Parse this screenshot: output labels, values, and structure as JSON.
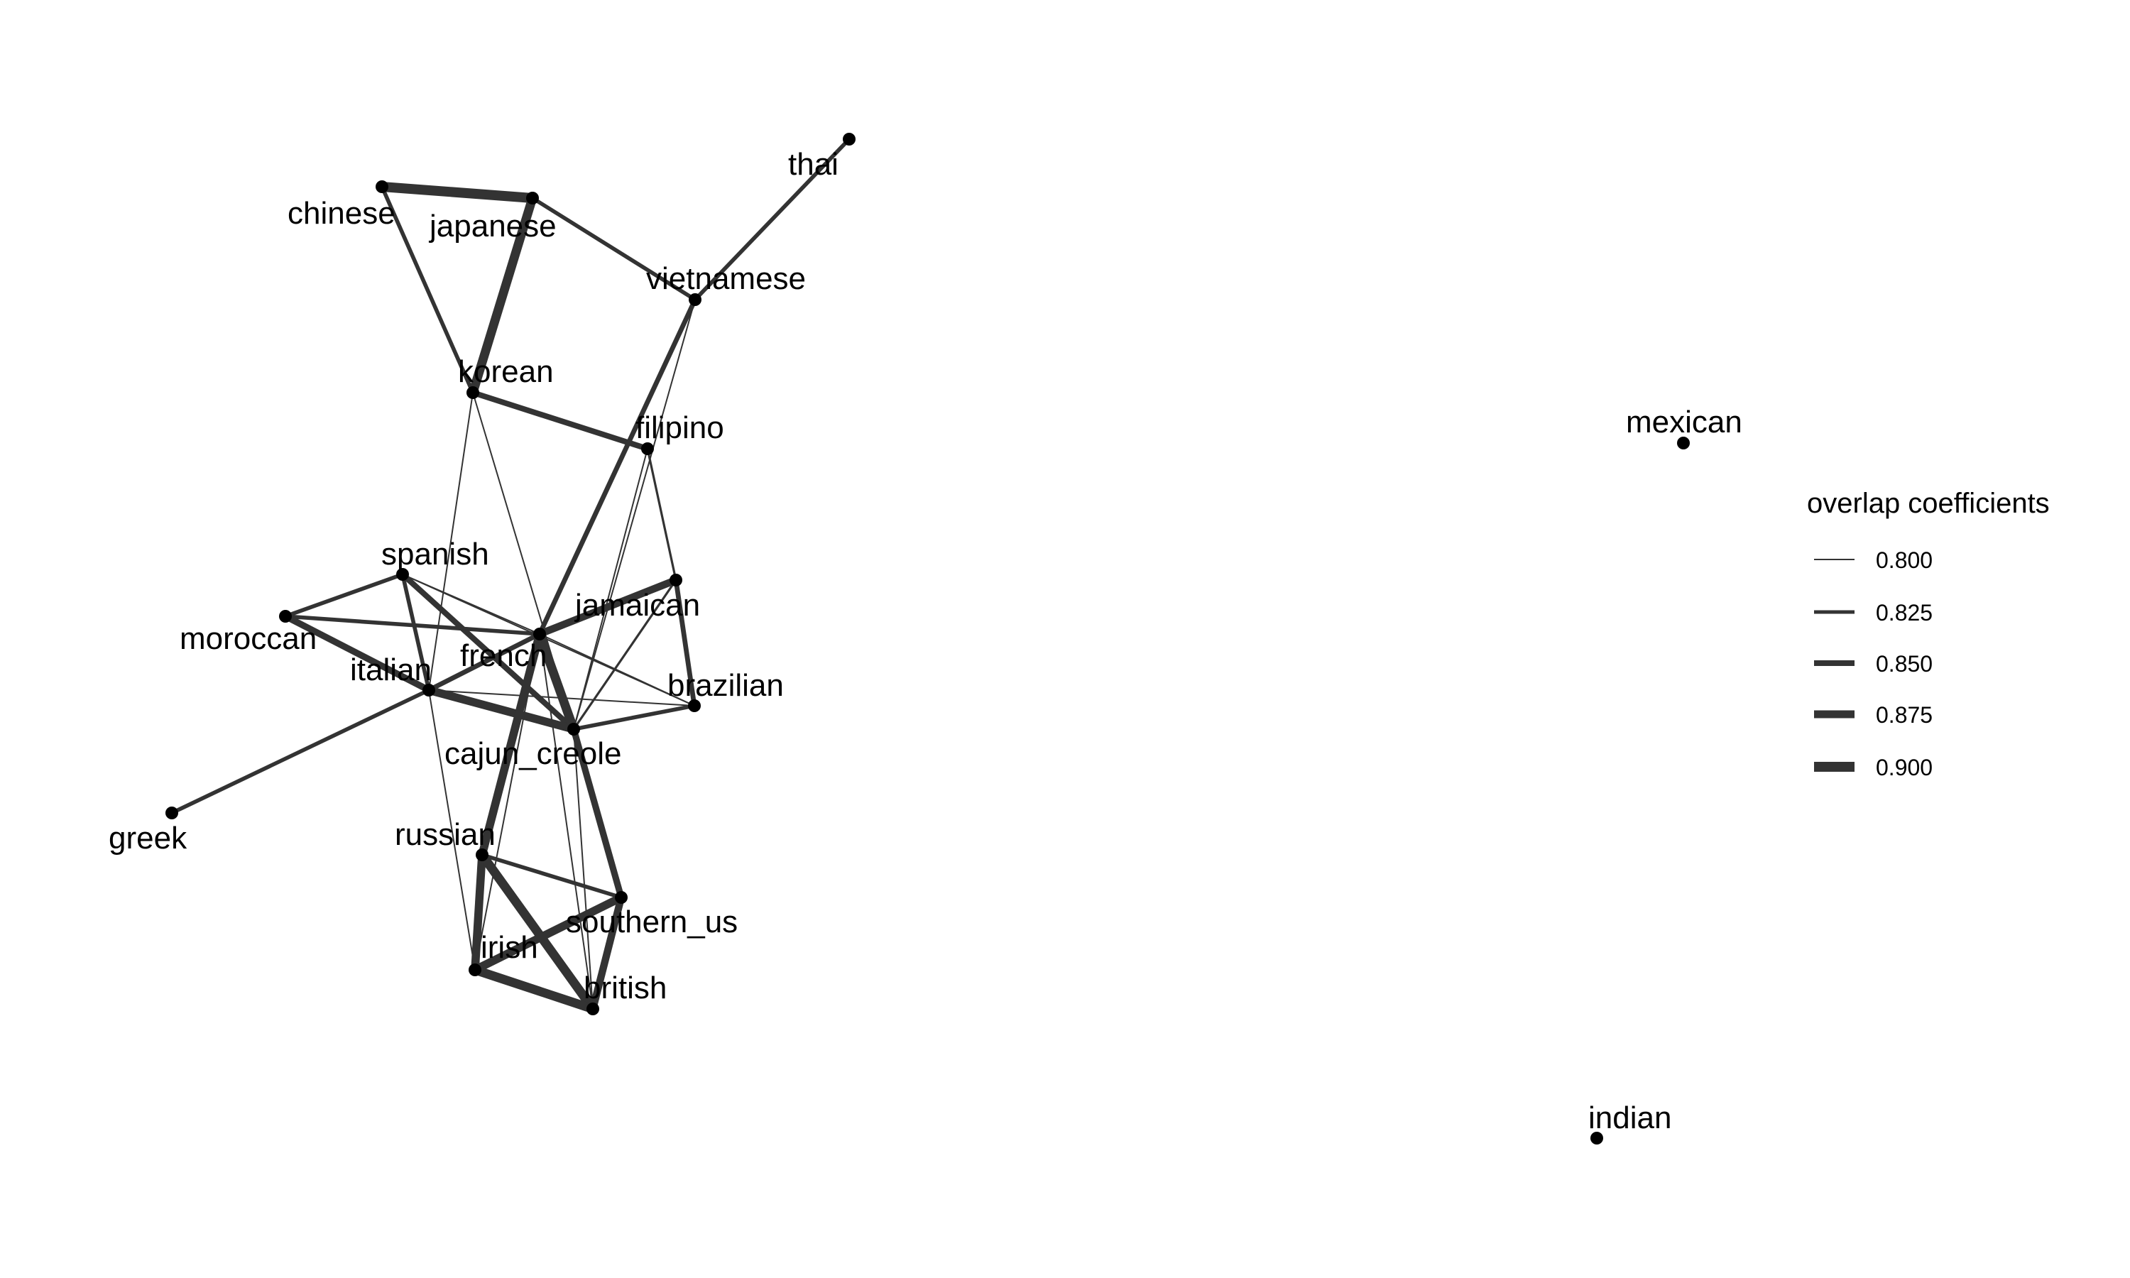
{
  "graph": {
    "type": "network",
    "edge_color": "#333333",
    "node_color": "#000000",
    "nodes": [
      {
        "id": "thai",
        "label": "thai"
      },
      {
        "id": "chinese",
        "label": "chinese"
      },
      {
        "id": "japanese",
        "label": "japanese"
      },
      {
        "id": "vietnamese",
        "label": "vietnamese"
      },
      {
        "id": "korean",
        "label": "korean"
      },
      {
        "id": "filipino",
        "label": "filipino"
      },
      {
        "id": "mexican",
        "label": "mexican"
      },
      {
        "id": "spanish",
        "label": "spanish"
      },
      {
        "id": "jamaican",
        "label": "jamaican"
      },
      {
        "id": "moroccan",
        "label": "moroccan"
      },
      {
        "id": "italian",
        "label": "italian"
      },
      {
        "id": "french",
        "label": "french"
      },
      {
        "id": "brazilian",
        "label": "brazilian"
      },
      {
        "id": "cajun_creole",
        "label": "cajun_creole"
      },
      {
        "id": "greek",
        "label": "greek"
      },
      {
        "id": "russian",
        "label": "russian"
      },
      {
        "id": "southern_us",
        "label": "southern_us"
      },
      {
        "id": "irish",
        "label": "irish"
      },
      {
        "id": "british",
        "label": "british"
      },
      {
        "id": "indian",
        "label": "indian"
      }
    ],
    "edges": [
      {
        "source": "chinese",
        "target": "japanese",
        "weight": 0.9
      },
      {
        "source": "chinese",
        "target": "korean",
        "weight": 0.83
      },
      {
        "source": "japanese",
        "target": "korean",
        "weight": 0.89
      },
      {
        "source": "japanese",
        "target": "vietnamese",
        "weight": 0.83
      },
      {
        "source": "thai",
        "target": "vietnamese",
        "weight": 0.83
      },
      {
        "source": "vietnamese",
        "target": "french",
        "weight": 0.84
      },
      {
        "source": "vietnamese",
        "target": "cajun_creole",
        "weight": 0.8
      },
      {
        "source": "korean",
        "target": "filipino",
        "weight": 0.85
      },
      {
        "source": "korean",
        "target": "cajun_creole",
        "weight": 0.8
      },
      {
        "source": "korean",
        "target": "italian",
        "weight": 0.8
      },
      {
        "source": "filipino",
        "target": "jamaican",
        "weight": 0.81
      },
      {
        "source": "filipino",
        "target": "cajun_creole",
        "weight": 0.8
      },
      {
        "source": "spanish",
        "target": "moroccan",
        "weight": 0.83
      },
      {
        "source": "spanish",
        "target": "cajun_creole",
        "weight": 0.85
      },
      {
        "source": "spanish",
        "target": "italian",
        "weight": 0.83
      },
      {
        "source": "spanish",
        "target": "french",
        "weight": 0.8
      },
      {
        "source": "spanish",
        "target": "brazilian",
        "weight": 0.8
      },
      {
        "source": "moroccan",
        "target": "french",
        "weight": 0.83
      },
      {
        "source": "moroccan",
        "target": "italian",
        "weight": 0.86
      },
      {
        "source": "jamaican",
        "target": "french",
        "weight": 0.87
      },
      {
        "source": "jamaican",
        "target": "brazilian",
        "weight": 0.84
      },
      {
        "source": "jamaican",
        "target": "cajun_creole",
        "weight": 0.81
      },
      {
        "source": "italian",
        "target": "french",
        "weight": 0.84
      },
      {
        "source": "italian",
        "target": "cajun_creole",
        "weight": 0.88
      },
      {
        "source": "italian",
        "target": "greek",
        "weight": 0.83
      },
      {
        "source": "italian",
        "target": "brazilian",
        "weight": 0.8
      },
      {
        "source": "italian",
        "target": "irish",
        "weight": 0.8
      },
      {
        "source": "french",
        "target": "cajun_creole",
        "weight": 0.89
      },
      {
        "source": "french",
        "target": "brazilian",
        "weight": 0.8
      },
      {
        "source": "french",
        "target": "russian",
        "weight": 0.88
      },
      {
        "source": "cajun_creole",
        "target": "brazilian",
        "weight": 0.83
      },
      {
        "source": "cajun_creole",
        "target": "southern_us",
        "weight": 0.86
      },
      {
        "source": "cajun_creole",
        "target": "british",
        "weight": 0.8
      },
      {
        "source": "russian",
        "target": "irish",
        "weight": 0.88
      },
      {
        "source": "russian",
        "target": "british",
        "weight": 0.89
      },
      {
        "source": "russian",
        "target": "southern_us",
        "weight": 0.83
      },
      {
        "source": "irish",
        "target": "southern_us",
        "weight": 0.88
      },
      {
        "source": "irish",
        "target": "british",
        "weight": 0.89
      },
      {
        "source": "southern_us",
        "target": "british",
        "weight": 0.87
      },
      {
        "source": "british",
        "target": "french",
        "weight": 0.8
      },
      {
        "source": "irish",
        "target": "french",
        "weight": 0.8
      }
    ]
  },
  "legend": {
    "title": "overlap coefficients",
    "items": [
      {
        "label": "0.800",
        "value": 0.8
      },
      {
        "label": "0.825",
        "value": 0.825
      },
      {
        "label": "0.850",
        "value": 0.85
      },
      {
        "label": "0.875",
        "value": 0.875
      },
      {
        "label": "0.900",
        "value": 0.9
      }
    ]
  }
}
